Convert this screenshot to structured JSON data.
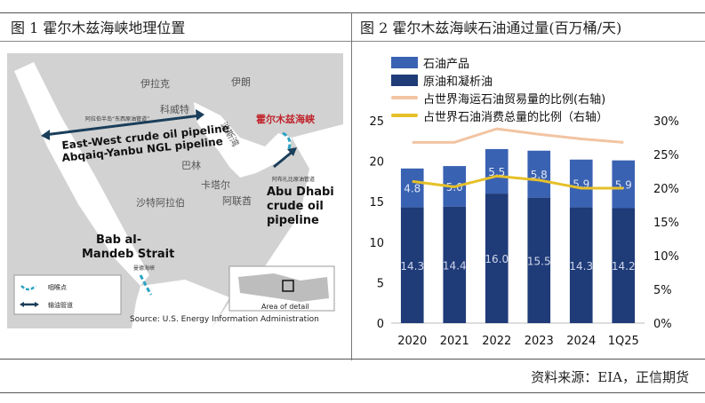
{
  "fig1": {
    "title": "图 1  霍尔木兹海峡地理位置",
    "map": {
      "labels": {
        "iraq": "伊拉克",
        "iran": "伊朗",
        "kuwait": "科威特",
        "persian_gulf": "波斯湾",
        "bahrain": "巴林",
        "qatar": "卡塔尔",
        "uae": "阿联酋",
        "saudi": "沙特阿拉伯",
        "hormuz": "霍尔木兹海峡",
        "ew_cn": "阿拉伯半岛“东西原油管道”",
        "ew_en1": "East-West crude oil pipeline",
        "ew_en2": "Abqaiq-Yanbu NGL pipeline",
        "adcop_cn": "阿布扎比原油管道",
        "adcop_en1": "Abu Dhabi",
        "adcop_en2": "crude oil",
        "adcop_en3": "pipeline",
        "bab_en1": "Bab al-",
        "bab_en2": "Mandeb Strait",
        "bab_cn": "曼德海峡",
        "legend_choke": "咽喉点",
        "legend_pipe": "输油管道",
        "inset_label": "Area of detail",
        "source": "Source: U.S. Energy Information Administration"
      }
    }
  },
  "fig2": {
    "title": "图 2  霍尔木兹海峡石油通过量(百万桶/天)"
  },
  "source_note": "资料来源：EIA，正信期货",
  "colors": {
    "products": "#3a62b2",
    "crude": "#1f3b78",
    "sea_share": "#f2c4a2",
    "cons_share": "#e6c02a",
    "land": "#c9c9c9",
    "sea": "#ffffff",
    "pipeline": "#1b3e5a",
    "choke": "#2aa3c4"
  },
  "chart_data": {
    "type": "bar",
    "stacked": true,
    "categories": [
      "2020",
      "2021",
      "2022",
      "2023",
      "2024",
      "1Q25"
    ],
    "series": [
      {
        "name": "石油产品",
        "values": [
          4.8,
          5.0,
          5.5,
          5.8,
          5.9,
          5.9
        ],
        "axis": "left"
      },
      {
        "name": "原油和凝析油",
        "values": [
          14.3,
          14.4,
          16.0,
          15.5,
          14.3,
          14.2
        ],
        "axis": "left"
      },
      {
        "name": "占世界海运石油贸易量的比例(右轴)",
        "type": "line",
        "values": [
          26.8,
          26.8,
          28.8,
          28.0,
          27.3,
          26.8
        ],
        "axis": "right"
      },
      {
        "name": "占世界石油消费总量的比例（右轴）",
        "type": "line",
        "values": [
          21.0,
          20.2,
          21.8,
          21.2,
          20.0,
          20.0
        ],
        "axis": "right"
      }
    ],
    "ylim": [
      0,
      25
    ],
    "y_ticks": [
      0,
      5,
      10,
      15,
      20,
      25
    ],
    "y2lim": [
      0,
      30
    ],
    "y2_ticks": [
      "0%",
      "5%",
      "10%",
      "15%",
      "20%",
      "25%",
      "30%"
    ],
    "grid": false,
    "legend_position": "top-left"
  }
}
